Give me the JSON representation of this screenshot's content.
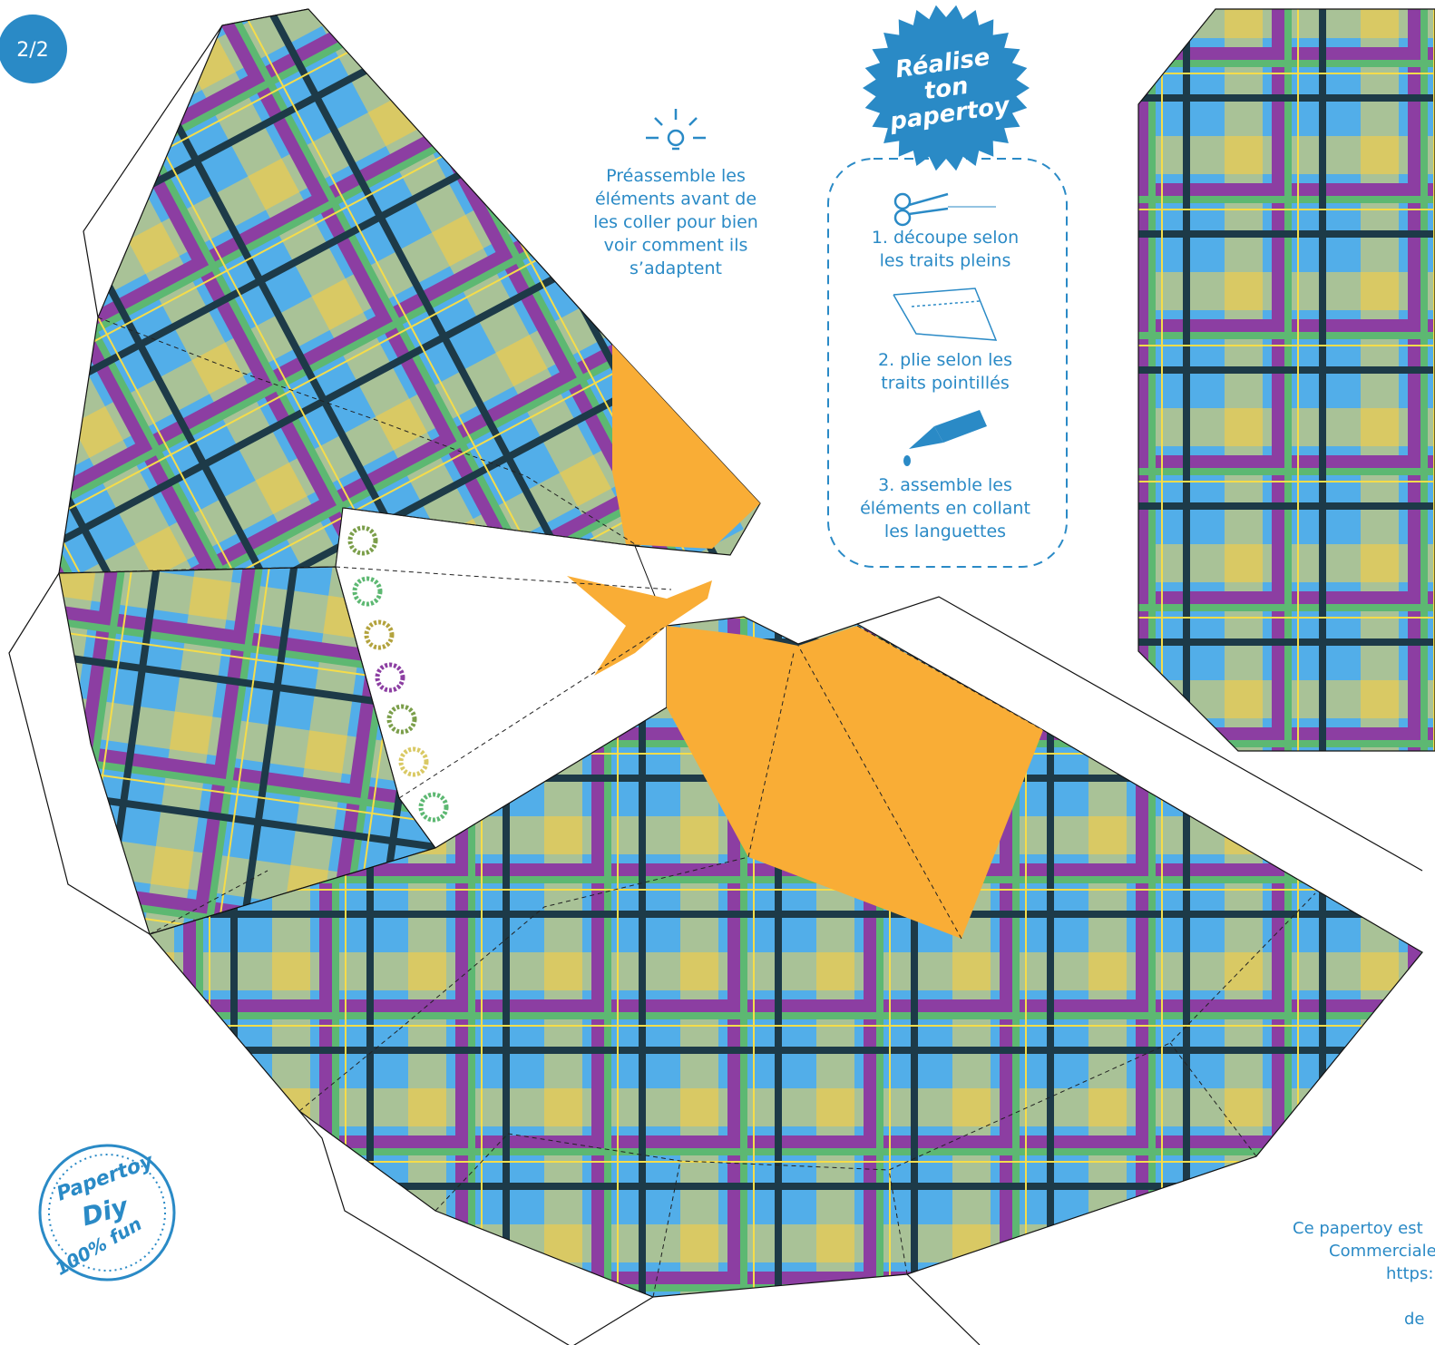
{
  "page_number": "2/2",
  "tip": {
    "lines": [
      "Préassemble les",
      "éléments avant de",
      "les coller pour bien",
      "voir comment ils",
      "s’adaptent"
    ]
  },
  "badge": {
    "lines": [
      "Réalise",
      "ton",
      "papertoy"
    ]
  },
  "steps": [
    {
      "lines": [
        "1. découpe selon",
        "les traits pleins"
      ]
    },
    {
      "lines": [
        "2. plie selon les",
        "traits pointillés"
      ]
    },
    {
      "lines": [
        "3. assemble les",
        "éléments en collant",
        "les languettes"
      ]
    }
  ],
  "stamp": {
    "lines": [
      "Papertoy",
      "Diy",
      "100% fun"
    ]
  },
  "credit": {
    "lines": [
      "Ce papertoy est",
      "Commerciale",
      "https:",
      "de"
    ]
  }
}
